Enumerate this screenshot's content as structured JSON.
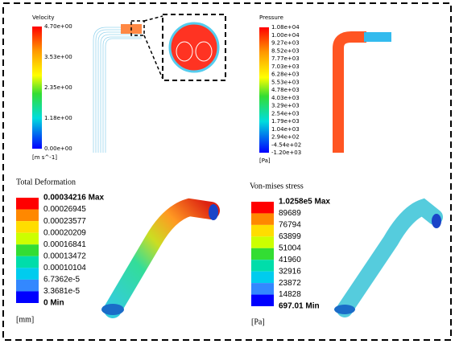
{
  "panels": [
    {
      "title": "Velocity",
      "labels": [
        "4.70e+00",
        "3.53e+00",
        "2.35e+00",
        "1.18e+00",
        "0.00e+00"
      ],
      "unit": "[m s^-1]"
    },
    {
      "title": "Pressure",
      "labels": [
        "1.08e+04",
        "1.00e+04",
        "9.27e+03",
        "8.52e+03",
        "7.77e+03",
        "7.03e+03",
        "6.28e+03",
        "5.53e+03",
        "4.78e+03",
        "4.03e+03",
        "3.29e+03",
        "2.54e+03",
        "1.79e+03",
        "1.04e+03",
        "2.94e+02",
        "-4.54e+02",
        "-1.20e+03"
      ],
      "unit": "[Pa]"
    },
    {
      "title": "Total Deformation",
      "labels": [
        "0.00034216 Max",
        "0.00026945",
        "0.00023577",
        "0.00020209",
        "0.00016841",
        "0.00013472",
        "0.00010104",
        "6.7362e-5",
        "3.3681e-5",
        "0 Min"
      ],
      "unit": "[mm]"
    },
    {
      "title": "Von-mises stress",
      "labels": [
        "1.0258e5 Max",
        "89689",
        "76794",
        "63899",
        "51004",
        "41960",
        "32916",
        "23872",
        "14828",
        "697.01 Min"
      ],
      "unit": "[Pa]"
    }
  ]
}
